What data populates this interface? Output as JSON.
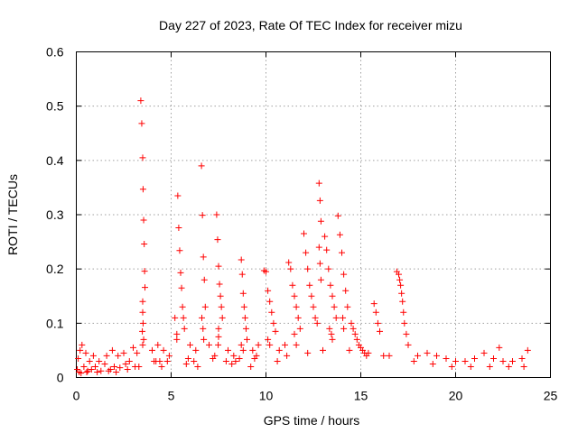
{
  "chart_data": {
    "type": "scatter",
    "title": "Day 227 of 2023, Rate Of TEC Index for receiver mizu",
    "xlabel": "GPS time / hours",
    "ylabel": "ROTI / TECUs",
    "xlim": [
      0,
      25
    ],
    "ylim": [
      0,
      0.6
    ],
    "xticks": [
      0,
      5,
      10,
      15,
      20,
      25
    ],
    "yticks": [
      0,
      0.1,
      0.2,
      0.3,
      0.4,
      0.5,
      0.6
    ],
    "grid": true,
    "legend": "none",
    "marker": "plus",
    "color": "#ff0000",
    "series": [
      {
        "x": [
          3.4,
          3.45,
          3.5,
          3.52,
          3.55,
          3.58,
          3.6,
          3.62,
          3.5,
          3.5,
          3.52,
          3.48,
          3.55,
          3.5,
          5.2,
          5.35,
          5.4,
          5.45,
          5.5,
          5.55,
          5.6,
          5.65,
          5.7,
          5.3,
          5.3,
          6.6,
          6.65,
          6.7,
          6.75,
          6.8,
          6.62,
          6.68,
          6.72,
          7.4,
          7.45,
          7.5,
          7.55,
          7.6,
          7.65,
          7.7,
          7.5,
          7.5,
          7.48,
          8.7,
          8.75,
          8.8,
          8.85,
          8.9,
          8.95,
          9.0,
          8.7,
          8.8,
          9.9,
          10.0,
          10.1,
          10.2,
          10.3,
          10.4,
          10.5,
          10.1,
          10.2,
          11.2,
          11.3,
          11.4,
          11.5,
          11.6,
          11.7,
          11.8,
          11.5,
          11.6,
          12.0,
          12.1,
          12.2,
          12.3,
          12.4,
          12.5,
          12.6,
          12.7,
          12.8,
          12.85,
          12.9,
          12.8,
          12.85,
          12.9,
          13.1,
          13.2,
          13.3,
          13.4,
          13.5,
          13.6,
          13.7,
          13.35,
          13.45,
          13.5,
          13.8,
          13.9,
          14.0,
          14.1,
          14.2,
          14.3,
          14.05,
          14.1,
          14.5,
          14.6,
          14.7,
          14.8,
          14.9,
          15.0,
          15.1,
          15.2,
          15.3,
          15.7,
          15.8,
          15.9,
          16.0,
          16.9,
          17.0,
          17.05,
          17.1,
          17.15,
          17.2,
          17.25,
          17.3,
          17.4,
          17.5,
          18.0,
          18.5,
          19.0,
          19.5,
          20.0,
          20.5,
          21.0,
          21.5,
          22.0,
          22.3,
          22.5,
          23.0,
          23.5,
          23.8,
          0.1,
          0.2,
          0.3,
          0.5,
          0.7,
          0.9,
          1.2,
          1.6,
          1.9,
          2.2,
          2.5,
          2.8,
          3.0,
          3.2,
          4.0,
          4.3,
          4.6,
          4.9,
          6.0,
          6.3,
          7.0,
          8.0,
          8.3,
          9.3,
          9.6,
          10.7,
          11.0,
          0.4,
          1.0,
          1.5,
          2.0,
          2.6,
          4.1,
          4.4,
          5.8,
          6.2,
          7.2,
          7.9,
          8.4,
          9.4,
          0.05,
          0.15,
          0.6,
          0.8,
          1.3,
          1.8,
          2.3,
          3.3,
          4.5,
          6.4,
          8.2,
          9.2,
          10.6,
          11.1,
          12.2,
          13.0,
          14.4,
          15.4,
          16.2,
          16.5,
          17.8,
          18.8,
          19.8,
          20.8,
          21.8,
          22.8,
          23.6,
          0.25,
          0.55,
          1.1,
          1.7,
          2.1,
          2.7,
          3.1,
          4.2,
          4.8,
          5.9,
          7.3,
          8.6,
          9.5
        ],
        "y": [
          0.51,
          0.468,
          0.405,
          0.347,
          0.29,
          0.246,
          0.196,
          0.166,
          0.14,
          0.12,
          0.1,
          0.085,
          0.07,
          0.06,
          0.11,
          0.335,
          0.276,
          0.234,
          0.193,
          0.165,
          0.13,
          0.11,
          0.09,
          0.08,
          0.07,
          0.39,
          0.299,
          0.222,
          0.18,
          0.13,
          0.11,
          0.09,
          0.07,
          0.3,
          0.254,
          0.205,
          0.172,
          0.15,
          0.13,
          0.11,
          0.09,
          0.075,
          0.06,
          0.217,
          0.19,
          0.155,
          0.13,
          0.11,
          0.09,
          0.07,
          0.06,
          0.05,
          0.197,
          0.195,
          0.16,
          0.14,
          0.12,
          0.1,
          0.085,
          0.07,
          0.06,
          0.212,
          0.2,
          0.17,
          0.15,
          0.13,
          0.11,
          0.09,
          0.08,
          0.06,
          0.265,
          0.23,
          0.2,
          0.17,
          0.15,
          0.13,
          0.11,
          0.1,
          0.358,
          0.326,
          0.288,
          0.24,
          0.21,
          0.18,
          0.26,
          0.235,
          0.2,
          0.17,
          0.15,
          0.13,
          0.11,
          0.09,
          0.08,
          0.07,
          0.298,
          0.263,
          0.23,
          0.19,
          0.16,
          0.13,
          0.11,
          0.09,
          0.1,
          0.09,
          0.08,
          0.07,
          0.06,
          0.055,
          0.05,
          0.045,
          0.04,
          0.136,
          0.12,
          0.1,
          0.085,
          0.195,
          0.19,
          0.18,
          0.17,
          0.155,
          0.14,
          0.12,
          0.1,
          0.08,
          0.06,
          0.04,
          0.045,
          0.04,
          0.035,
          0.03,
          0.03,
          0.035,
          0.045,
          0.035,
          0.055,
          0.03,
          0.03,
          0.035,
          0.05,
          0.035,
          0.05,
          0.06,
          0.045,
          0.03,
          0.04,
          0.03,
          0.04,
          0.05,
          0.04,
          0.045,
          0.03,
          0.055,
          0.045,
          0.05,
          0.06,
          0.05,
          0.04,
          0.06,
          0.05,
          0.06,
          0.05,
          0.04,
          0.05,
          0.06,
          0.05,
          0.06,
          0.02,
          0.02,
          0.025,
          0.02,
          0.025,
          0.03,
          0.03,
          0.025,
          0.03,
          0.035,
          0.03,
          0.03,
          0.035,
          0.015,
          0.01,
          0.012,
          0.015,
          0.012,
          0.015,
          0.018,
          0.02,
          0.02,
          0.02,
          0.025,
          0.02,
          0.03,
          0.04,
          0.045,
          0.05,
          0.05,
          0.045,
          0.04,
          0.04,
          0.03,
          0.025,
          0.02,
          0.02,
          0.02,
          0.02,
          0.02,
          0.008,
          0.01,
          0.01,
          0.012,
          0.01,
          0.015,
          0.02,
          0.03,
          0.03,
          0.035,
          0.04,
          0.035,
          0.04
        ]
      }
    ]
  }
}
